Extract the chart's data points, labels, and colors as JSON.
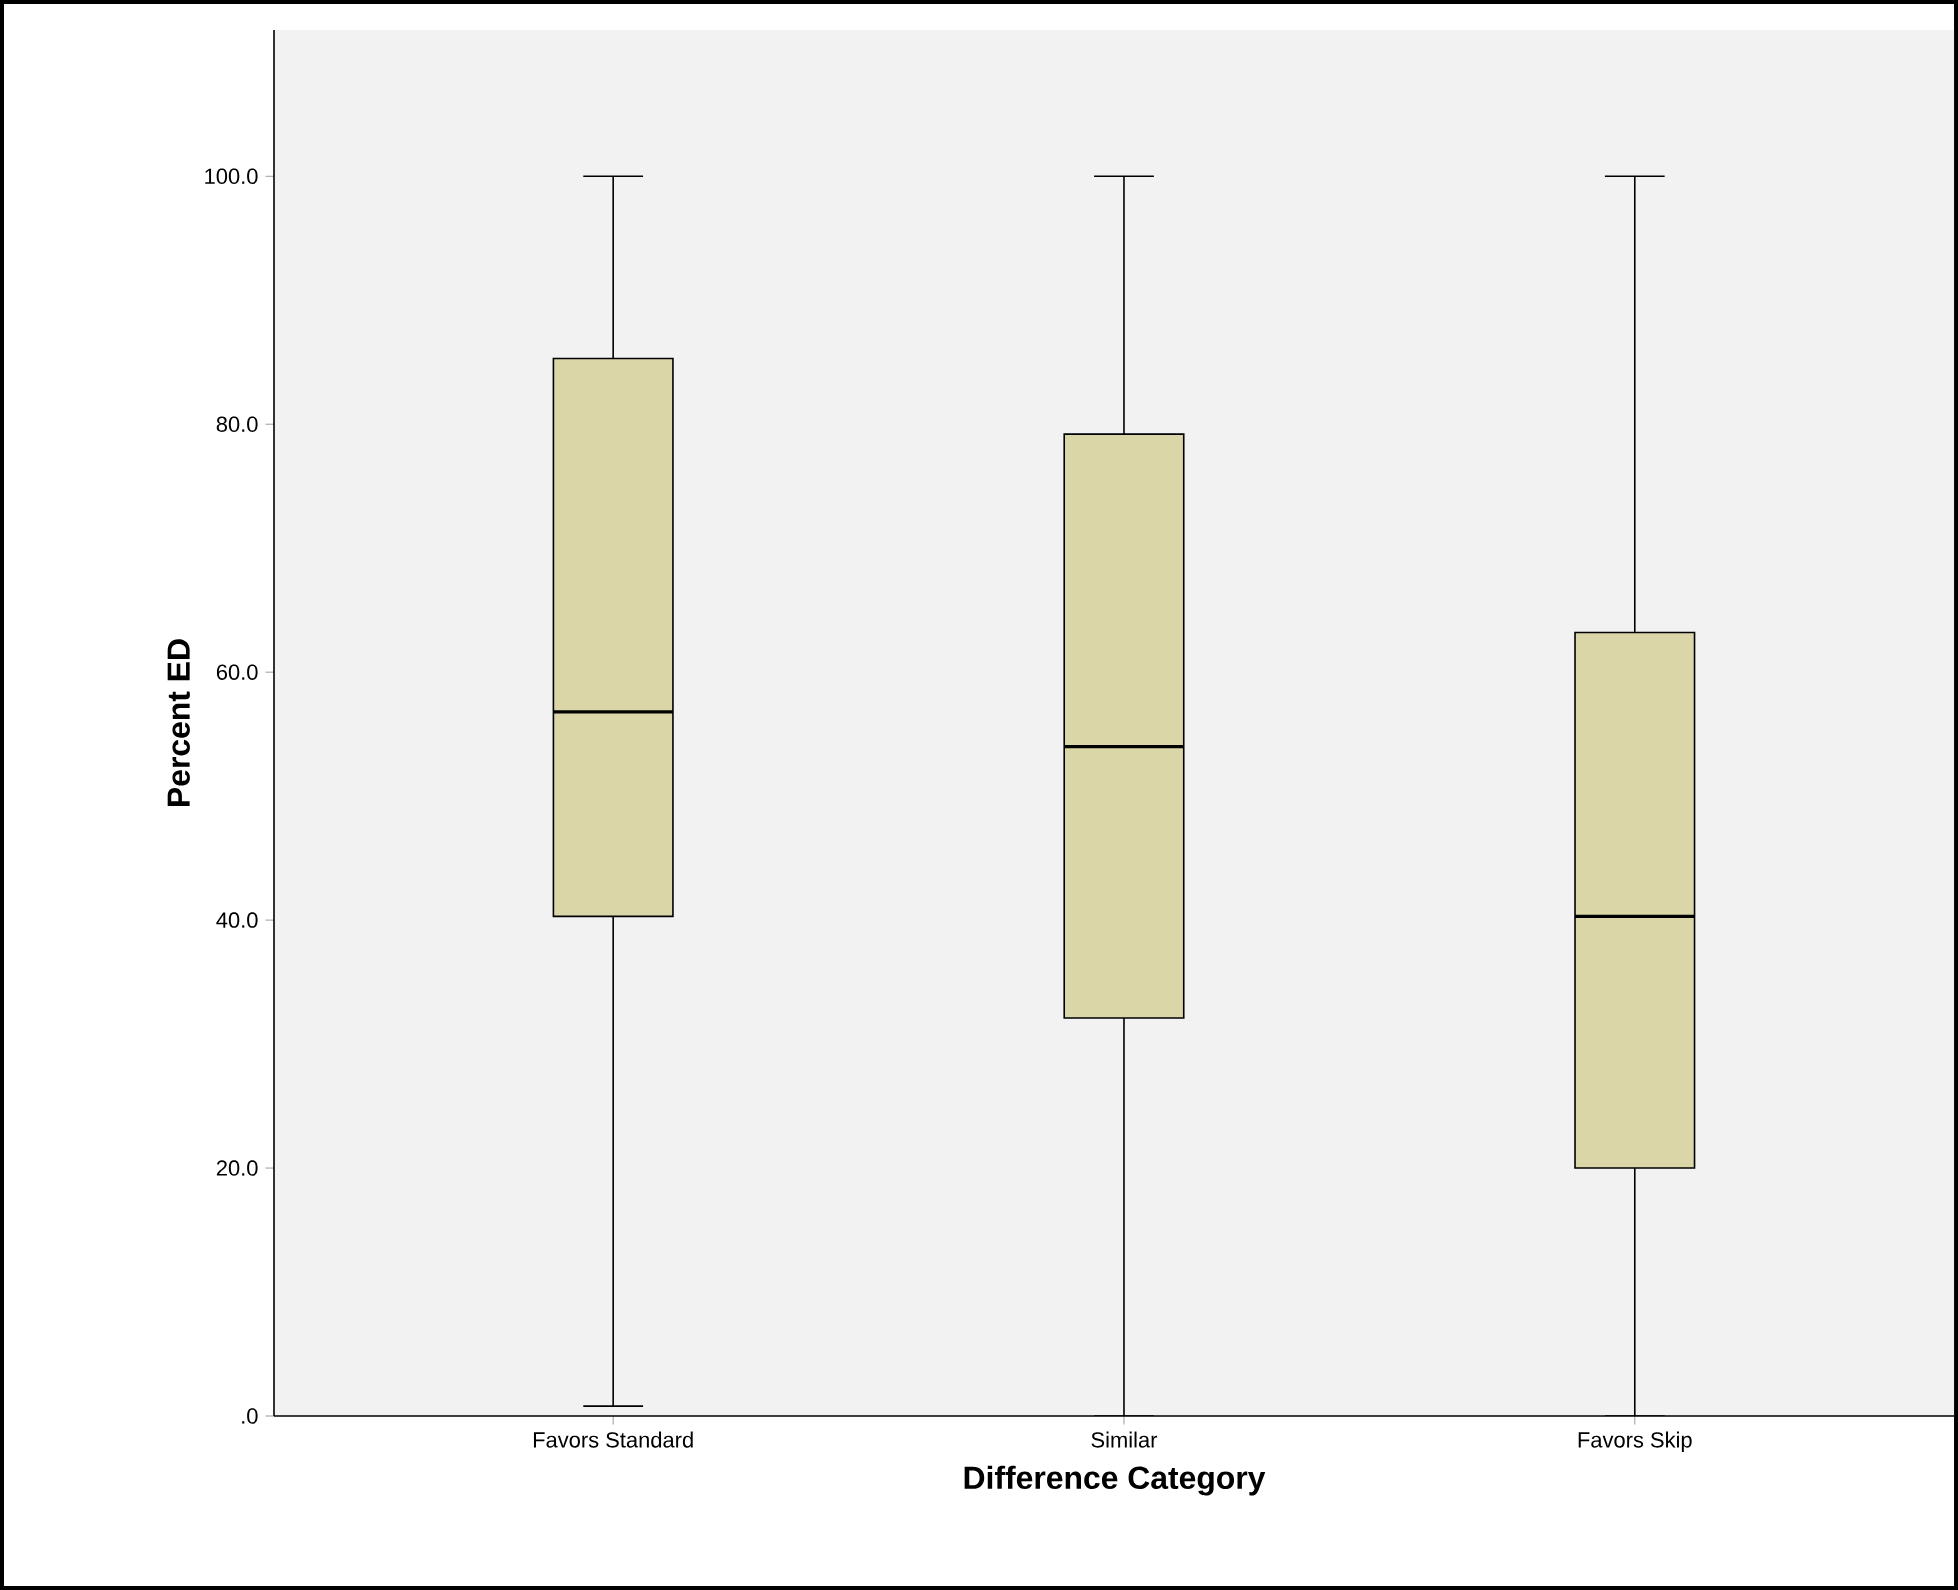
{
  "chart_data": {
    "type": "box",
    "xlabel": "Difference Category",
    "ylabel": "Percent ED",
    "categories": [
      "Favors Standard",
      "Similar",
      "Favors Skip"
    ],
    "boxes": [
      {
        "low": 0.8,
        "q1": 40.3,
        "median": 56.8,
        "q3": 85.3,
        "high": 100
      },
      {
        "low": 0,
        "q1": 32.1,
        "median": 54.0,
        "q3": 79.2,
        "high": 100
      },
      {
        "low": 0,
        "q1": 20.0,
        "median": 40.3,
        "q3": 63.2,
        "high": 100
      }
    ],
    "color": "#dbd6a7",
    "ylim": [
      0,
      111.8
    ],
    "yticks": [
      {
        "value": 0,
        "label": ".0"
      },
      {
        "value": 20,
        "label": "20.0"
      },
      {
        "value": 40,
        "label": "40.0"
      },
      {
        "value": 60,
        "label": "60.0"
      },
      {
        "value": 80,
        "label": "80.0"
      },
      {
        "value": 100,
        "label": "100.0"
      }
    ],
    "grid": false
  }
}
